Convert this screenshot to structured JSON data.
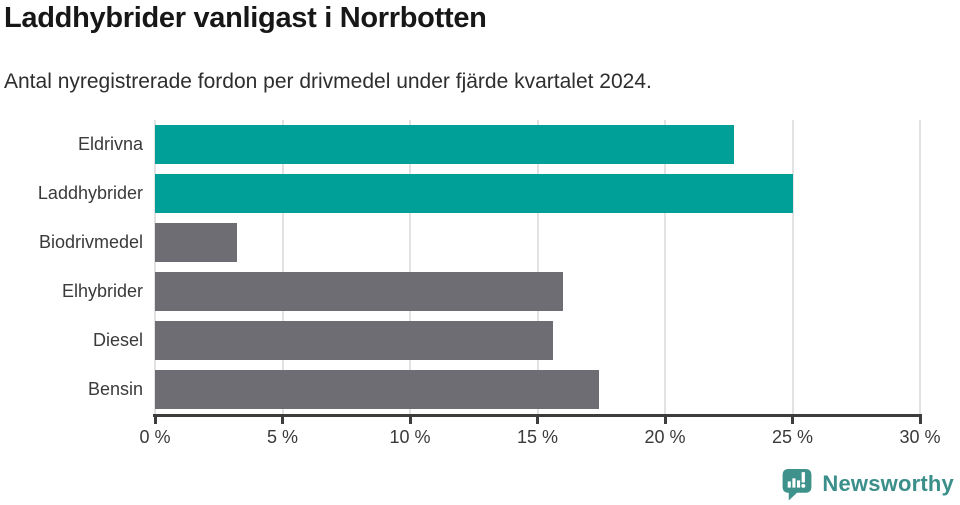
{
  "header": {
    "title": "Laddhybrider vanligast i Norrbotten",
    "subtitle": "Antal nyregistrerade fordon per drivmedel under fjärde kvartalet 2024."
  },
  "chart_data": {
    "type": "bar",
    "orientation": "horizontal",
    "title": "Laddhybrider vanligast i Norrbotten",
    "subtitle": "Antal nyregistrerade fordon per drivmedel under fjärde kvartalet 2024.",
    "categories": [
      "Eldrivna",
      "Laddhybrider",
      "Biodrivmedel",
      "Elhybrider",
      "Diesel",
      "Bensin"
    ],
    "values": [
      22.7,
      25.0,
      3.2,
      16.0,
      15.6,
      17.4
    ],
    "unit": "%",
    "xlabel": "",
    "ylabel": "",
    "xlim": [
      0,
      30
    ],
    "xtick_step": 5,
    "xtick_labels": [
      "0 %",
      "5 %",
      "10 %",
      "15 %",
      "20 %",
      "25 %",
      "30 %"
    ],
    "grid": true,
    "legend": "none",
    "colors": {
      "highlight": "#00a099",
      "default": "#6d6d73",
      "gridline": "#e2e2e2",
      "axis": "#3d3d3d"
    },
    "highlight_categories": [
      "Eldrivna",
      "Laddhybrider"
    ],
    "bar_colors": [
      "#00a099",
      "#00a099",
      "#6d6d73",
      "#6d6d73",
      "#6d6d73",
      "#6d6d73"
    ]
  },
  "footer": {
    "brand": "Newsworthy",
    "brand_color": "#3b8f8a",
    "logo_icon": "bar-chart-speech-bubble-icon"
  }
}
